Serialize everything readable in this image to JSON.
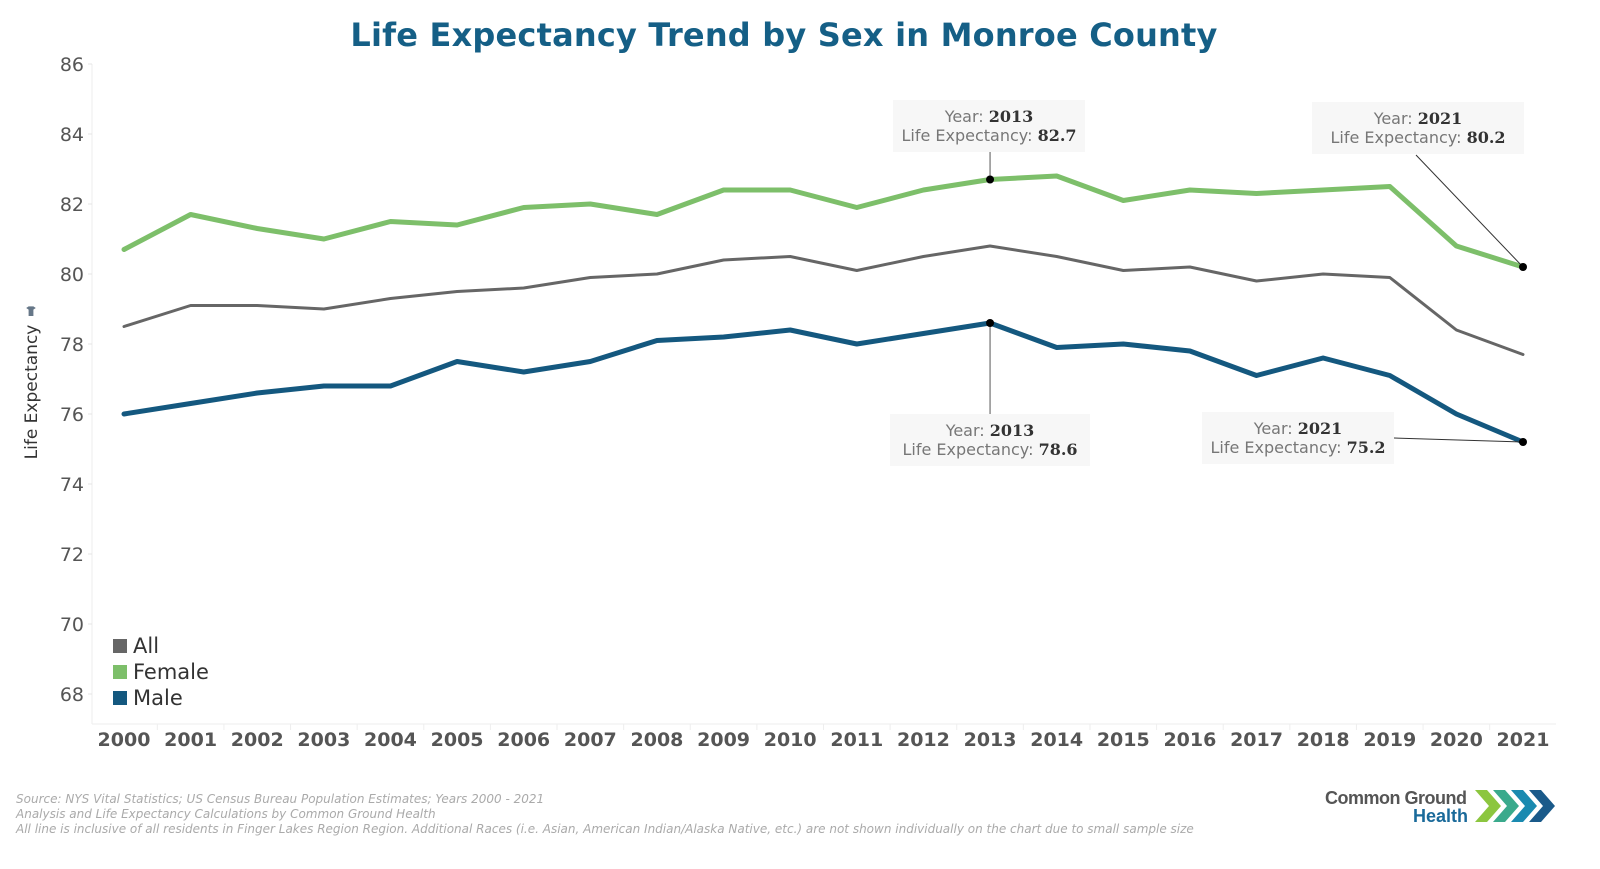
{
  "chart_data": {
    "type": "line",
    "title": "Life Expectancy Trend by Sex in Monroe County",
    "xlabel": "",
    "ylabel": "Life Expectancy",
    "ylim": [
      67,
      86
    ],
    "yticks": [
      68,
      70,
      72,
      74,
      76,
      78,
      80,
      82,
      84,
      86
    ],
    "grid": false,
    "legend_position": "bottom-left",
    "categories": [
      "2000",
      "2001",
      "2002",
      "2003",
      "2004",
      "2005",
      "2006",
      "2007",
      "2008",
      "2009",
      "2010",
      "2011",
      "2012",
      "2013",
      "2014",
      "2015",
      "2016",
      "2017",
      "2018",
      "2019",
      "2020",
      "2021"
    ],
    "series": [
      {
        "name": "All",
        "color": "#666666",
        "values": [
          78.5,
          79.1,
          79.1,
          79.0,
          79.3,
          79.5,
          79.6,
          79.9,
          80.0,
          80.4,
          80.5,
          80.1,
          80.5,
          80.8,
          80.5,
          80.1,
          80.2,
          79.8,
          80.0,
          79.9,
          78.4,
          77.7
        ]
      },
      {
        "name": "Female",
        "color": "#7dbf6a",
        "values": [
          80.7,
          81.7,
          81.3,
          81.0,
          81.5,
          81.4,
          81.9,
          82.0,
          81.7,
          82.4,
          82.4,
          81.9,
          82.4,
          82.7,
          82.8,
          82.1,
          82.4,
          82.3,
          82.4,
          82.5,
          80.8,
          80.2
        ]
      },
      {
        "name": "Male",
        "color": "#14587f",
        "values": [
          76.0,
          76.3,
          76.6,
          76.8,
          76.8,
          77.5,
          77.2,
          77.5,
          78.1,
          78.2,
          78.4,
          78.0,
          78.3,
          78.6,
          77.9,
          78.0,
          77.8,
          77.1,
          77.6,
          77.1,
          76.0,
          75.2
        ]
      }
    ],
    "annotations": [
      {
        "series": "Female",
        "year_label": "Year:",
        "year": "2013",
        "value_label": "Life Expectancy:",
        "value": "82.7"
      },
      {
        "series": "Female",
        "year_label": "Year:",
        "year": "2021",
        "value_label": "Life Expectancy:",
        "value": "80.2"
      },
      {
        "series": "Male",
        "year_label": "Year:",
        "year": "2013",
        "value_label": "Life Expectancy:",
        "value": "78.6"
      },
      {
        "series": "Male",
        "year_label": "Year:",
        "year": "2021",
        "value_label": "Life Expectancy:",
        "value": "75.2"
      }
    ]
  },
  "footer": {
    "line1": "Source: NYS Vital Statistics; US Census Bureau Population Estimates; Years 2000 - 2021",
    "line2": "Analysis and Life Expectancy Calculations by Common Ground Health",
    "line3": "All line is inclusive of all residents in Finger Lakes Region Region. Additional Races (i.e. Asian, American Indian/Alaska Native, etc.) are not shown individually on the chart due to small sample size"
  },
  "logo": {
    "line1": "Common Ground",
    "line2": "Health",
    "chevron_colors": [
      "#8cc63f",
      "#3aaa8c",
      "#1a8ab0",
      "#1a5a8a"
    ]
  }
}
